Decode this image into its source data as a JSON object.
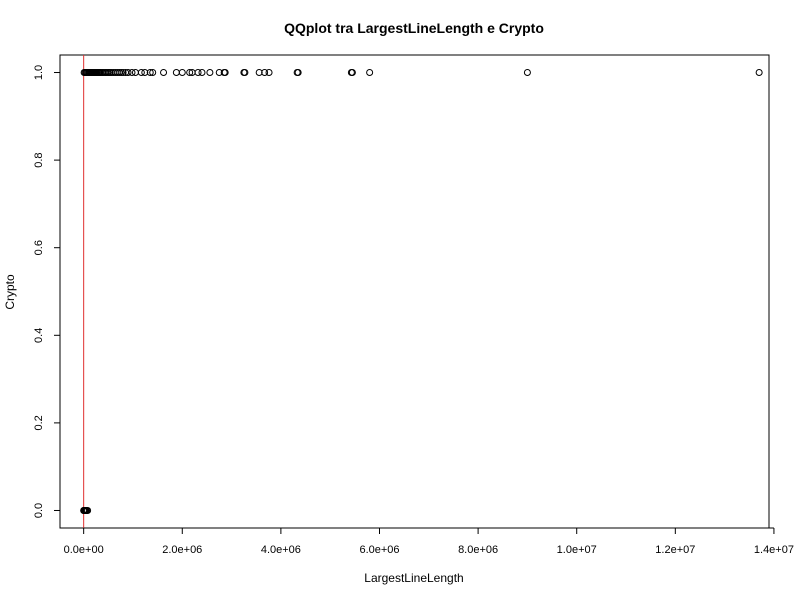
{
  "chart_data": {
    "type": "scatter",
    "title": "QQplot tra LargestLineLength e Crypto",
    "xlabel": "LargestLineLength",
    "ylabel": "Crypto",
    "xlim": [
      -480000,
      13900000
    ],
    "ylim": [
      -0.04,
      1.04
    ],
    "x_ticks": [
      0,
      2000000,
      4000000,
      6000000,
      8000000,
      10000000,
      12000000,
      14000000
    ],
    "x_tick_labels": [
      "0.0e+00",
      "2.0e+06",
      "4.0e+06",
      "6.0e+06",
      "8.0e+06",
      "1.0e+07",
      "1.2e+07",
      "1.4e+07"
    ],
    "y_ticks": [
      0.0,
      0.2,
      0.4,
      0.6,
      0.8,
      1.0
    ],
    "y_tick_labels": [
      "0.0",
      "0.2",
      "0.4",
      "0.6",
      "0.8",
      "1.0"
    ],
    "reference_line": {
      "orientation": "vertical",
      "x": 0,
      "color": "#e03030"
    },
    "marker": "open-circle",
    "series": [
      {
        "points": [
          [
            0,
            0
          ],
          [
            5000,
            0
          ],
          [
            10000,
            0
          ],
          [
            15000,
            0
          ],
          [
            20000,
            0
          ],
          [
            30000,
            0
          ],
          [
            40000,
            0
          ],
          [
            50000,
            0
          ],
          [
            60000,
            0
          ],
          [
            80000,
            0
          ],
          [
            10000,
            1
          ],
          [
            30000,
            1
          ],
          [
            50000,
            1
          ],
          [
            70000,
            1
          ],
          [
            90000,
            1
          ],
          [
            110000,
            1
          ],
          [
            130000,
            1
          ],
          [
            150000,
            1
          ],
          [
            170000,
            1
          ],
          [
            190000,
            1
          ],
          [
            210000,
            1
          ],
          [
            230000,
            1
          ],
          [
            250000,
            1
          ],
          [
            270000,
            1
          ],
          [
            290000,
            1
          ],
          [
            310000,
            1
          ],
          [
            330000,
            1
          ],
          [
            350000,
            1
          ],
          [
            380000,
            1
          ],
          [
            410000,
            1
          ],
          [
            440000,
            1
          ],
          [
            470000,
            1
          ],
          [
            500000,
            1
          ],
          [
            530000,
            1
          ],
          [
            560000,
            1
          ],
          [
            600000,
            1
          ],
          [
            640000,
            1
          ],
          [
            680000,
            1
          ],
          [
            720000,
            1
          ],
          [
            760000,
            1
          ],
          [
            800000,
            1
          ],
          [
            850000,
            1
          ],
          [
            900000,
            1
          ],
          [
            980000,
            1
          ],
          [
            1050000,
            1
          ],
          [
            1170000,
            1
          ],
          [
            1240000,
            1
          ],
          [
            1350000,
            1
          ],
          [
            1400000,
            1
          ],
          [
            1620000,
            1
          ],
          [
            1880000,
            1
          ],
          [
            2000000,
            1
          ],
          [
            2150000,
            1
          ],
          [
            2200000,
            1
          ],
          [
            2320000,
            1
          ],
          [
            2400000,
            1
          ],
          [
            2560000,
            1
          ],
          [
            2750000,
            1
          ],
          [
            2850000,
            1
          ],
          [
            2870000,
            1
          ],
          [
            3250000,
            1
          ],
          [
            3270000,
            1
          ],
          [
            3560000,
            1
          ],
          [
            3670000,
            1
          ],
          [
            3760000,
            1
          ],
          [
            4330000,
            1
          ],
          [
            4350000,
            1
          ],
          [
            5430000,
            1
          ],
          [
            5450000,
            1
          ],
          [
            5800000,
            1
          ],
          [
            9000000,
            1
          ],
          [
            13700000,
            1
          ]
        ]
      }
    ],
    "grid": false
  }
}
